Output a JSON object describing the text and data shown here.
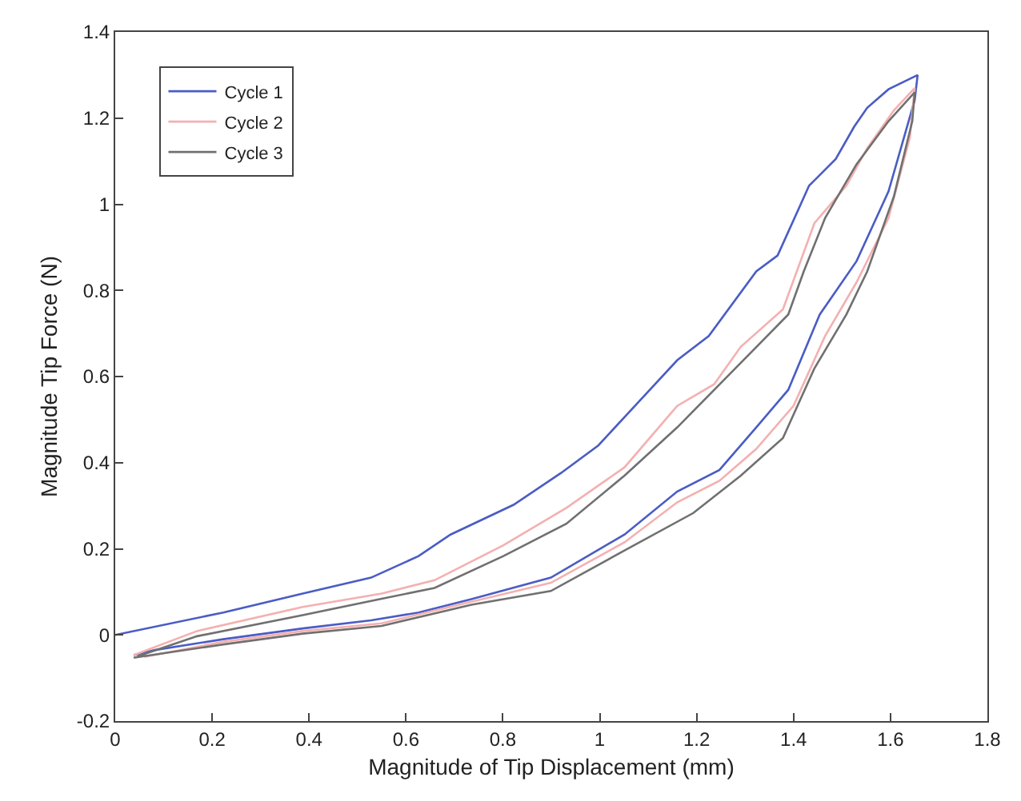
{
  "chart_data": {
    "type": "line",
    "xlabel": "Magnitude of Tip Displacement (mm)",
    "ylabel": "Magnitude Tip Force (N)",
    "xlim": [
      0,
      1.8
    ],
    "ylim": [
      -0.2,
      1.4
    ],
    "xticks": [
      0,
      0.2,
      0.4,
      0.6,
      0.8,
      1,
      1.2,
      1.4,
      1.6,
      1.8
    ],
    "yticks": [
      -0.2,
      0,
      0.2,
      0.4,
      0.6,
      0.8,
      1,
      1.2,
      1.4
    ],
    "legend": "top left",
    "marker": "none",
    "line_style": "solid",
    "series": [
      {
        "name": "Cycle 1",
        "color": "#4a5cc4",
        "x": [
          0.038,
          0.082,
          0.223,
          0.387,
          0.528,
          0.626,
          0.735,
          0.899,
          0.975,
          1.051,
          1.16,
          1.247,
          1.323,
          1.389,
          1.454,
          1.53,
          1.596,
          1.65,
          1.656,
          1.596,
          1.552,
          1.525,
          1.487,
          1.432,
          1.367,
          1.323,
          1.225,
          1.16,
          0.997,
          0.92,
          0.822,
          0.692,
          0.626,
          0.528,
          0.387,
          0.223,
          0
        ],
        "values": [
          -0.047,
          -0.035,
          -0.01,
          0.015,
          0.034,
          0.052,
          0.083,
          0.133,
          0.183,
          0.233,
          0.333,
          0.383,
          0.482,
          0.569,
          0.744,
          0.868,
          1.03,
          1.242,
          1.3,
          1.267,
          1.224,
          1.18,
          1.105,
          1.043,
          0.881,
          0.844,
          0.694,
          0.638,
          0.44,
          0.376,
          0.302,
          0.233,
          0.183,
          0.133,
          0.096,
          0.052,
          0
        ]
      },
      {
        "name": "Cycle 2",
        "color": "#f4b0b0",
        "x": [
          0.06,
          0.223,
          0.387,
          0.55,
          0.735,
          0.899,
          1.051,
          1.16,
          1.247,
          1.323,
          1.4,
          1.465,
          1.53,
          1.596,
          1.64,
          1.65,
          1.607,
          1.552,
          1.509,
          1.443,
          1.378,
          1.291,
          1.236,
          1.16,
          1.051,
          0.931,
          0.801,
          0.659,
          0.55,
          0.387,
          0.169,
          0.038
        ],
        "values": [
          -0.051,
          -0.016,
          0.009,
          0.027,
          0.077,
          0.121,
          0.215,
          0.308,
          0.358,
          0.432,
          0.532,
          0.694,
          0.819,
          0.968,
          1.155,
          1.27,
          1.218,
          1.13,
          1.043,
          0.956,
          0.756,
          0.669,
          0.582,
          0.532,
          0.389,
          0.295,
          0.208,
          0.127,
          0.096,
          0.065,
          0.009,
          -0.047
        ]
      },
      {
        "name": "Cycle 3",
        "color": "#707070",
        "x": [
          0.038,
          0.223,
          0.387,
          0.55,
          0.735,
          0.899,
          1.051,
          1.193,
          1.291,
          1.378,
          1.443,
          1.509,
          1.552,
          1.607,
          1.645,
          1.65,
          1.596,
          1.53,
          1.465,
          1.421,
          1.389,
          1.313,
          1.16,
          1.051,
          0.931,
          0.801,
          0.659,
          0.55,
          0.387,
          0.169,
          0.045
        ],
        "values": [
          -0.053,
          -0.022,
          0.003,
          0.021,
          0.07,
          0.102,
          0.196,
          0.283,
          0.37,
          0.457,
          0.619,
          0.744,
          0.844,
          1.018,
          1.193,
          1.26,
          1.193,
          1.093,
          0.968,
          0.844,
          0.744,
          0.657,
          0.482,
          0.37,
          0.258,
          0.183,
          0.109,
          0.084,
          0.046,
          -0.003,
          -0.05
        ]
      }
    ]
  }
}
